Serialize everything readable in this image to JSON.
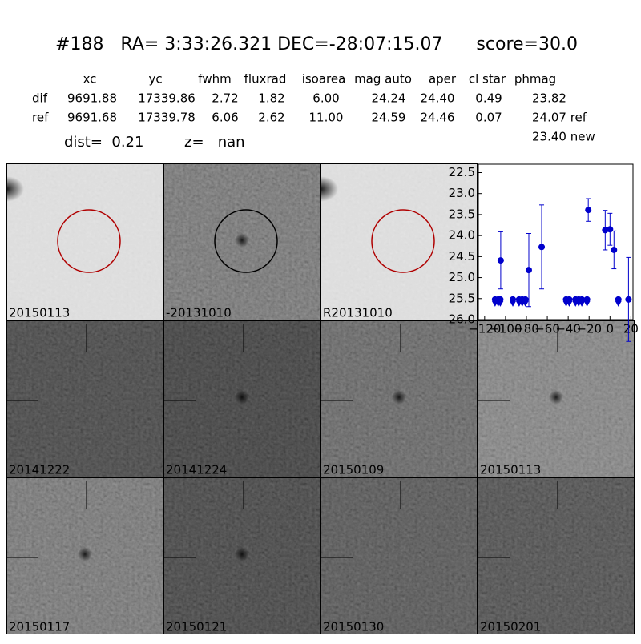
{
  "header": {
    "title": "#188   RA= 3:33:26.321 DEC=-28:07:15.07      score=30.0",
    "dist": "dist=  0.21",
    "z": "z=   nan",
    "new": "23.40 new"
  },
  "table": {
    "columns": [
      "xc",
      "yc",
      "fwhm",
      "fluxrad",
      "isoarea",
      "mag auto",
      "aper",
      "cl star",
      "phmag"
    ],
    "rows": [
      [
        "dif",
        "9691.88",
        "17339.86",
        "2.72",
        "1.82",
        "6.00",
        "24.24",
        "24.40",
        "0.49",
        "23.82"
      ],
      [
        "ref",
        "9691.68",
        "17339.78",
        "6.06",
        "2.62",
        "11.00",
        "24.59",
        "24.46",
        "0.07",
        "24.07 ref"
      ]
    ]
  },
  "stamps": [
    {
      "label": "20150113"
    },
    {
      "label": "-20131010"
    },
    {
      "label": "R20131010"
    },
    null,
    {
      "label": "20141222"
    },
    {
      "label": "20141224"
    },
    {
      "label": "20150109"
    },
    {
      "label": "20150113",
      "color": "#ff0000"
    },
    {
      "label": "20150117"
    },
    {
      "label": "20150121"
    },
    {
      "label": "20150130"
    },
    {
      "label": "20150201"
    }
  ],
  "chart_data": {
    "type": "scatter",
    "color": "#0000cc",
    "xlim": [
      -126,
      22
    ],
    "ylim": [
      26.0,
      22.3
    ],
    "xticks": [
      {
        "value": -120,
        "label": "−120"
      },
      {
        "value": -100,
        "label": "−100"
      },
      {
        "value": -80,
        "label": "−80"
      },
      {
        "value": -60,
        "label": "−60"
      },
      {
        "value": -40,
        "label": "−40"
      },
      {
        "value": -20,
        "label": "−20"
      },
      0,
      20
    ],
    "yticks": [
      22.5,
      {
        "value": 23,
        "label": "23.0"
      },
      23.5,
      {
        "value": 24,
        "label": "24.0"
      },
      24.5,
      {
        "value": 25,
        "label": "25.0"
      },
      25.5,
      {
        "value": 26,
        "label": "26.0"
      }
    ],
    "points": {
      "x": [
        -104.6,
        -77.7,
        -65.4,
        -20.8,
        -4.6,
        0,
        3.8,
        17.7
      ],
      "values": [
        24.59,
        24.82,
        24.27,
        23.39,
        23.87,
        23.85,
        24.34,
        25.52
      ],
      "errors": [
        0.68,
        0.87,
        1.0,
        0.27,
        0.47,
        0.38,
        0.45,
        1.0
      ]
    },
    "limits": {
      "x": [
        -110,
        -107,
        -105,
        -93,
        -87,
        -84,
        -81,
        -42,
        -39,
        -33,
        -30,
        -27,
        -22,
        8
      ],
      "values": [
        25.52,
        25.52,
        25.52,
        25.52,
        25.52,
        25.52,
        25.52,
        25.52,
        25.52,
        25.52,
        25.52,
        25.52,
        25.52,
        25.52
      ]
    }
  }
}
